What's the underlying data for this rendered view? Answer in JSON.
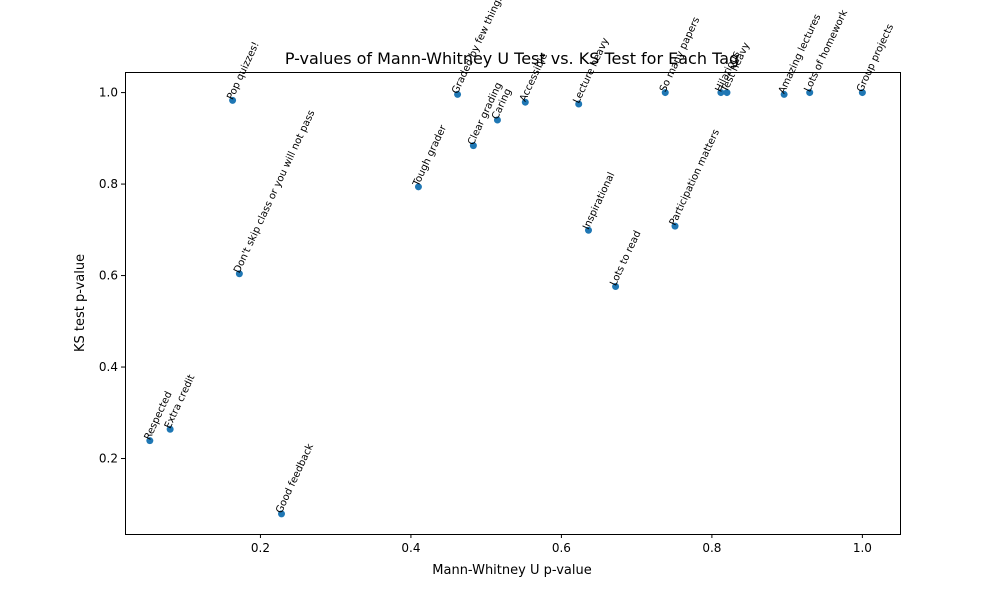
{
  "chart_data": {
    "type": "scatter",
    "title": "P-values of Mann-Whitney U Test vs. KS Test for Each Tag",
    "xlabel": "Mann-Whitney U p-value",
    "ylabel": "KS test p-value",
    "xlim": [
      0.02,
      1.05
    ],
    "ylim": [
      0.035,
      1.045
    ],
    "xticks": [
      0.2,
      0.4,
      0.6,
      0.8,
      1.0
    ],
    "yticks": [
      0.2,
      0.4,
      0.6,
      0.8,
      1.0
    ],
    "grid": false,
    "marker_color": "#1f77b4",
    "points": [
      {
        "label": "Pop quizzes!",
        "x": 0.163,
        "y": 0.983
      },
      {
        "label": "Don't skip class or you will not pass",
        "x": 0.172,
        "y": 0.604
      },
      {
        "label": "Respected",
        "x": 0.053,
        "y": 0.239
      },
      {
        "label": "Extra credit",
        "x": 0.08,
        "y": 0.264
      },
      {
        "label": "Good feedback",
        "x": 0.228,
        "y": 0.079
      },
      {
        "label": "Tough grader",
        "x": 0.41,
        "y": 0.794
      },
      {
        "label": "Graded by few things",
        "x": 0.462,
        "y": 0.996
      },
      {
        "label": "Clear grading",
        "x": 0.483,
        "y": 0.884
      },
      {
        "label": "Caring",
        "x": 0.515,
        "y": 0.94
      },
      {
        "label": "Accessible",
        "x": 0.552,
        "y": 0.979
      },
      {
        "label": "Lecture heavy",
        "x": 0.623,
        "y": 0.975
      },
      {
        "label": "Inspirational",
        "x": 0.636,
        "y": 0.699
      },
      {
        "label": "Lots to read",
        "x": 0.672,
        "y": 0.576
      },
      {
        "label": "So many papers",
        "x": 0.738,
        "y": 1.0
      },
      {
        "label": "Participation matters",
        "x": 0.751,
        "y": 0.708
      },
      {
        "label": "Hilarious",
        "x": 0.812,
        "y": 1.0
      },
      {
        "label": "Test heavy",
        "x": 0.82,
        "y": 1.0
      },
      {
        "label": "Amazing lectures",
        "x": 0.896,
        "y": 0.996
      },
      {
        "label": "Lots of homework",
        "x": 0.93,
        "y": 1.0
      },
      {
        "label": "Group projects",
        "x": 1.0,
        "y": 1.0
      }
    ]
  }
}
